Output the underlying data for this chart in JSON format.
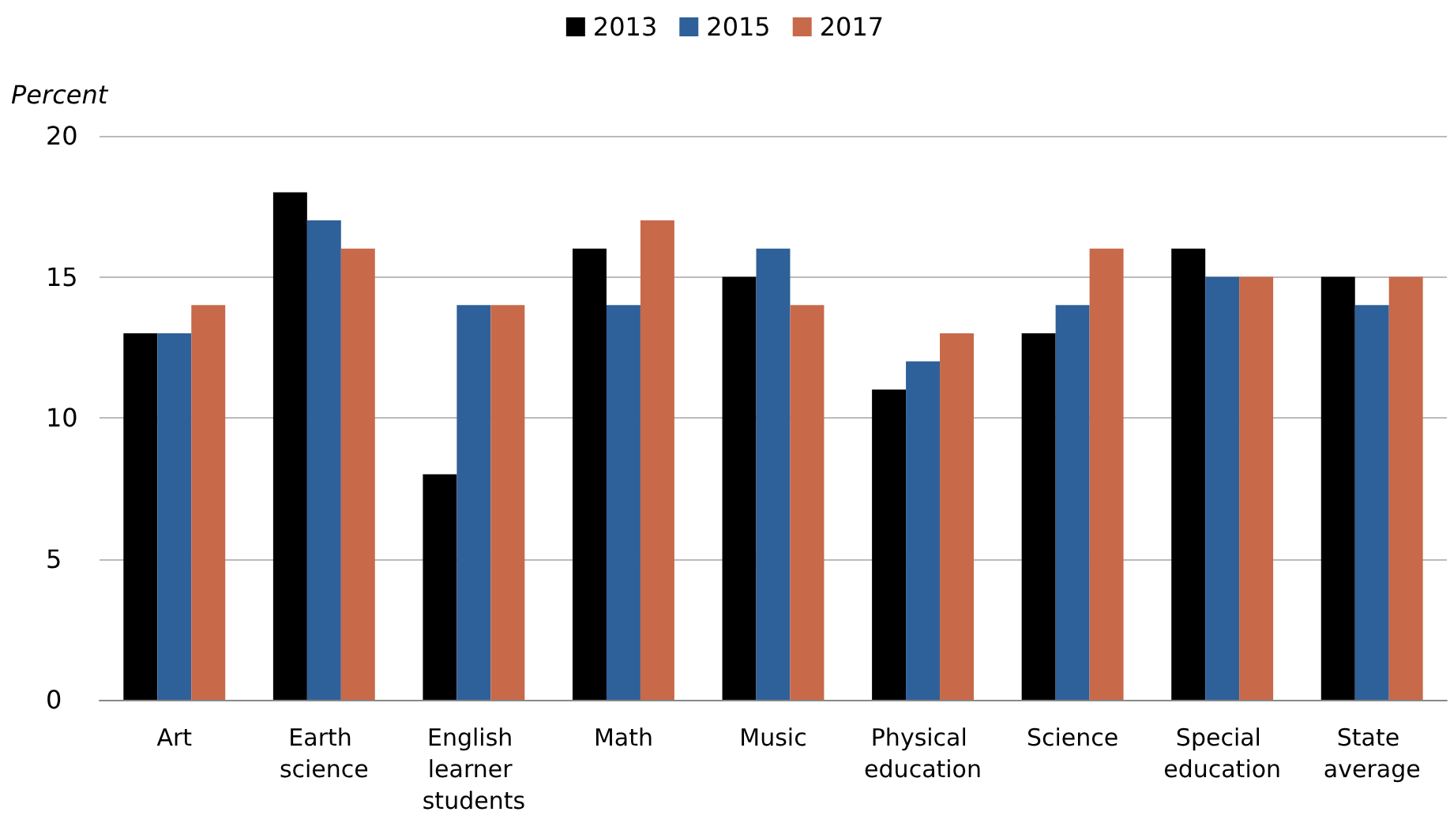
{
  "chart_data": {
    "type": "bar",
    "ylabel": "Percent",
    "categories": [
      "Art",
      "Earth science",
      "English learner students",
      "Math",
      "Music",
      "Physical education",
      "Science",
      "Special education",
      "State average"
    ],
    "series": [
      {
        "name": "2013",
        "color": "#000000",
        "values": [
          13,
          18,
          8,
          16,
          15,
          11,
          13,
          16,
          15
        ]
      },
      {
        "name": "2015",
        "color": "#2e6099",
        "values": [
          13,
          17,
          14,
          14,
          16,
          12,
          14,
          15,
          14
        ]
      },
      {
        "name": "2017",
        "color": "#c8694a",
        "values": [
          14,
          16,
          14,
          17,
          14,
          13,
          16,
          15,
          15
        ]
      }
    ],
    "ylim": [
      0,
      20
    ],
    "yticks": [
      0,
      5,
      10,
      15,
      20
    ],
    "grid": "y",
    "legend": "top"
  }
}
